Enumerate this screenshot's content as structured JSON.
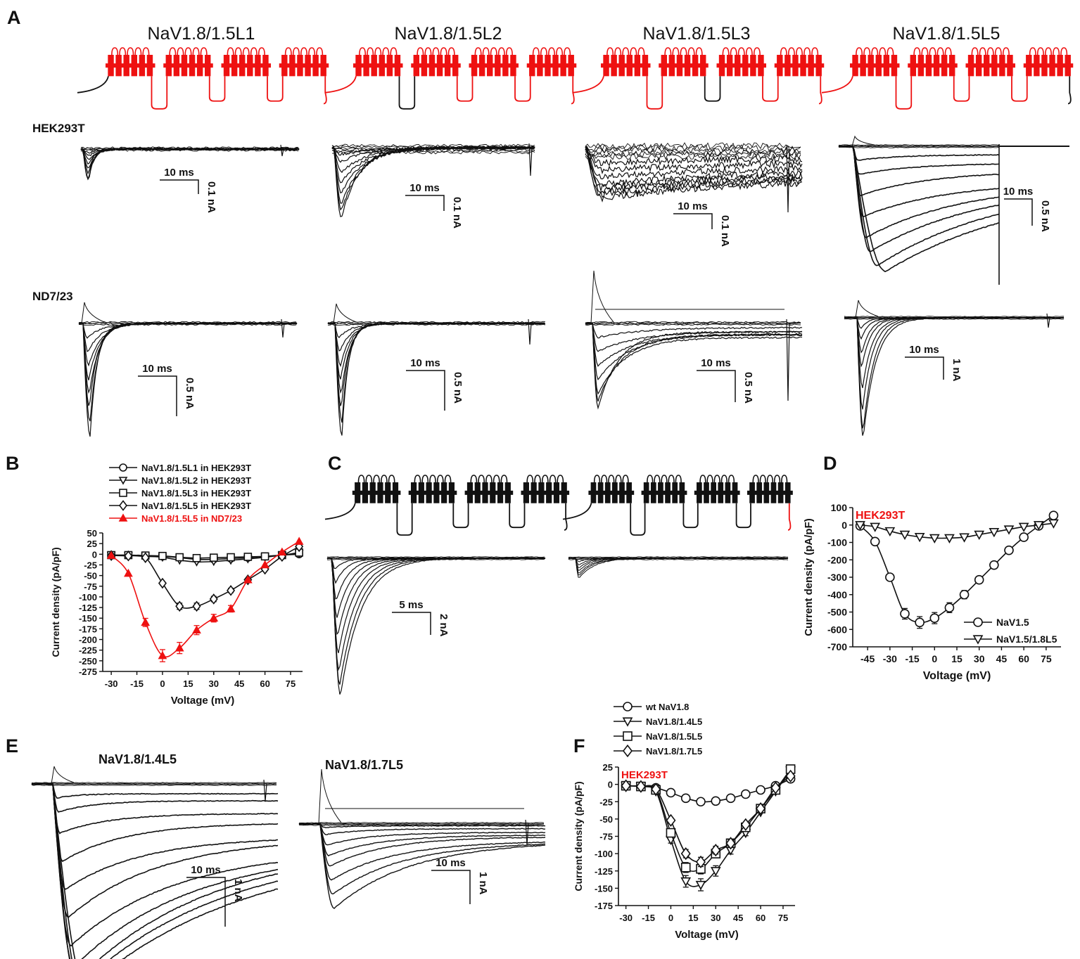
{
  "figure": {
    "panel_letters": [
      "A",
      "B",
      "C",
      "D",
      "E",
      "F"
    ],
    "colors": {
      "ink": "#111111",
      "accent": "#ee1111",
      "background": "#ffffff"
    }
  },
  "panel_a": {
    "constructs": [
      "NaV1.8/1.5L1",
      "NaV1.8/1.5L2",
      "NaV1.8/1.5L3",
      "NaV1.8/1.5L5"
    ],
    "row_labels": [
      "HEK293T",
      "ND7/23"
    ],
    "hek_scale": [
      {
        "time": "10 ms",
        "current": "0.1 nA"
      },
      {
        "time": "10 ms",
        "current": "0.1 nA"
      },
      {
        "time": "10 ms",
        "current": "0.1 nA"
      },
      {
        "time": "10 ms",
        "current": "0.5 nA"
      }
    ],
    "nd_scale": [
      {
        "time": "10 ms",
        "current": "0.5 nA"
      },
      {
        "time": "10 ms",
        "current": "0.5 nA"
      },
      {
        "time": "10 ms",
        "current": "0.5 nA"
      },
      {
        "time": "10 ms",
        "current": "1 nA"
      }
    ]
  },
  "panel_c": {
    "scale": {
      "time": "5 ms",
      "current": "2 nA"
    }
  },
  "panel_e": {
    "titles": [
      "NaV1.8/1.4L5",
      "NaV1.8/1.7L5"
    ],
    "scales": [
      {
        "time": "10 ms",
        "current": "1 nA"
      },
      {
        "time": "10 ms",
        "current": "1 nA"
      }
    ]
  },
  "chart_data": [
    {
      "id": "B",
      "type": "line",
      "xlabel": "Voltage (mV)",
      "ylabel": "Current density (pA/pF)",
      "xlim": [
        -35,
        82
      ],
      "ylim": [
        -275,
        50
      ],
      "xticks": [
        -30,
        -15,
        0,
        15,
        30,
        45,
        60,
        75
      ],
      "yticks": [
        50,
        25,
        0,
        -25,
        -50,
        -75,
        -100,
        -125,
        -150,
        -175,
        -200,
        -225,
        -250,
        -275
      ],
      "x": [
        -30,
        -20,
        -10,
        0,
        10,
        20,
        30,
        40,
        50,
        60,
        70,
        80
      ],
      "legend_position": "top",
      "series": [
        {
          "name": "NaV1.8/1.5L1 in HEK293T",
          "marker": "circle",
          "color": "#111111",
          "values": [
            -2,
            -3,
            -4,
            -5,
            -8,
            -12,
            -12,
            -10,
            -8,
            -5,
            -2,
            0
          ]
        },
        {
          "name": "NaV1.8/1.5L2 in HEK293T",
          "marker": "triangle-down",
          "color": "#111111",
          "values": [
            -2,
            -3,
            -5,
            -7,
            -14,
            -18,
            -17,
            -14,
            -11,
            -7,
            -2,
            2
          ]
        },
        {
          "name": "NaV1.8/1.5L3 in HEK293T",
          "marker": "square",
          "color": "#111111",
          "values": [
            -2,
            -2,
            -3,
            -4,
            -7,
            -9,
            -8,
            -7,
            -6,
            -5,
            -2,
            4
          ]
        },
        {
          "name": "NaV1.8/1.5L5 in HEK293T",
          "marker": "diamond",
          "color": "#111111",
          "values": [
            -3,
            -4,
            -8,
            -68,
            -122,
            -122,
            -105,
            -85,
            -60,
            -35,
            -5,
            18
          ]
        },
        {
          "name": "NaV1.8/1.5L5 in ND7/23",
          "marker": "triangle-up",
          "color": "#ee1111",
          "values": [
            -3,
            -45,
            -160,
            -238,
            -220,
            -178,
            -150,
            -128,
            -60,
            -25,
            5,
            30
          ]
        }
      ]
    },
    {
      "id": "D",
      "type": "line",
      "annotation": "HEK293T",
      "xlabel": "Voltage (mV)",
      "ylabel": "Current density (pA/pF)",
      "xlim": [
        -55,
        85
      ],
      "ylim": [
        -700,
        100
      ],
      "xticks": [
        -45,
        -30,
        -15,
        0,
        15,
        30,
        45,
        60,
        75
      ],
      "yticks": [
        100,
        0,
        -100,
        -200,
        -300,
        -400,
        -500,
        -600,
        -700
      ],
      "x": [
        -50,
        -40,
        -30,
        -20,
        -10,
        0,
        10,
        20,
        30,
        40,
        50,
        60,
        70,
        80
      ],
      "legend_position": "bottom-right",
      "series": [
        {
          "name": "NaV1.5",
          "marker": "circle",
          "color": "#111111",
          "values": [
            -5,
            -95,
            -300,
            -510,
            -560,
            -535,
            -475,
            -400,
            -315,
            -230,
            -145,
            -70,
            -5,
            55
          ]
        },
        {
          "name": "NaV1.5/1.8L5",
          "marker": "triangle-down",
          "color": "#111111",
          "values": [
            0,
            -10,
            -35,
            -55,
            -68,
            -75,
            -75,
            -70,
            -55,
            -40,
            -25,
            -10,
            0,
            10
          ]
        }
      ]
    },
    {
      "id": "F",
      "type": "line",
      "annotation": "HEK293T",
      "xlabel": "Voltage (mV)",
      "ylabel": "Current density (pA/pF)",
      "xlim": [
        -35,
        83
      ],
      "ylim": [
        -175,
        25
      ],
      "xticks": [
        -30,
        -15,
        0,
        15,
        30,
        45,
        60,
        75
      ],
      "yticks": [
        25,
        0,
        -25,
        -50,
        -75,
        -100,
        -125,
        -150,
        -175
      ],
      "x": [
        -30,
        -20,
        -10,
        0,
        10,
        20,
        30,
        40,
        50,
        60,
        70,
        80
      ],
      "legend_position": "top",
      "series": [
        {
          "name": "wt NaV1.8",
          "marker": "circle",
          "color": "#111111",
          "values": [
            -2,
            -3,
            -5,
            -12,
            -20,
            -25,
            -24,
            -20,
            -14,
            -8,
            -2,
            8
          ]
        },
        {
          "name": "NaV1.8/1.4L5",
          "marker": "triangle-down",
          "color": "#111111",
          "values": [
            -2,
            -3,
            -10,
            -80,
            -140,
            -145,
            -125,
            -95,
            -70,
            -40,
            -10,
            20
          ]
        },
        {
          "name": "NaV1.8/1.5L5",
          "marker": "square",
          "color": "#111111",
          "values": [
            -2,
            -3,
            -8,
            -70,
            -120,
            -122,
            -100,
            -85,
            -62,
            -35,
            -8,
            22
          ]
        },
        {
          "name": "NaV1.8/1.7L5",
          "marker": "diamond",
          "color": "#111111",
          "values": [
            -2,
            -3,
            -7,
            -52,
            -100,
            -112,
            -95,
            -85,
            -58,
            -35,
            -5,
            12
          ]
        }
      ]
    }
  ]
}
